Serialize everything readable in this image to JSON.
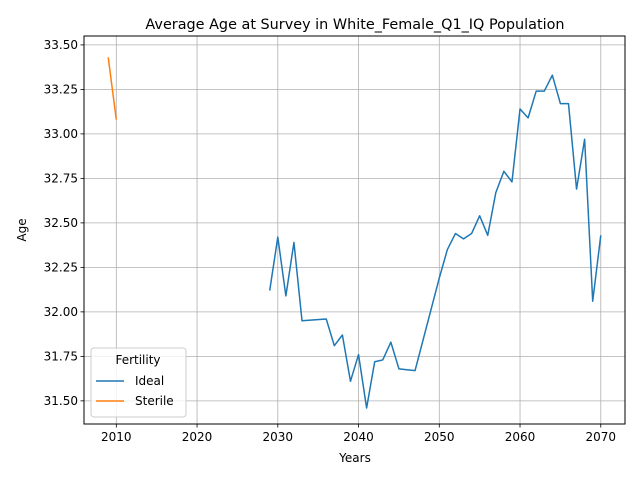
{
  "chart_data": {
    "type": "line",
    "title": "Average Age at Survey in White_Female_Q1_IQ Population",
    "xlabel": "Years",
    "ylabel": "Age",
    "xlim": [
      2006,
      2073
    ],
    "ylim": [
      31.37,
      33.55
    ],
    "xticks": [
      2010,
      2020,
      2030,
      2040,
      2050,
      2060,
      2070
    ],
    "yticks": [
      31.5,
      31.75,
      32.0,
      32.25,
      32.5,
      32.75,
      33.0,
      33.25,
      33.5
    ],
    "grid": true,
    "legend": {
      "title": "Fertility",
      "placement": "lower-left"
    },
    "series": [
      {
        "name": "Ideal",
        "color": "#1f77b4",
        "x": [
          2029,
          2030,
          2031,
          2032,
          2033,
          2036,
          2037,
          2038,
          2039,
          2040,
          2041,
          2042,
          2043,
          2044,
          2045,
          2047,
          2050,
          2051,
          2052,
          2053,
          2054,
          2055,
          2056,
          2057,
          2058,
          2059,
          2060,
          2061,
          2062,
          2063,
          2064,
          2065,
          2066,
          2067,
          2068,
          2069,
          2070
        ],
        "y": [
          32.12,
          32.42,
          32.09,
          32.39,
          31.95,
          31.96,
          31.81,
          31.87,
          31.61,
          31.76,
          31.46,
          31.72,
          31.73,
          31.83,
          31.68,
          31.67,
          32.19,
          32.35,
          32.44,
          32.41,
          32.44,
          32.54,
          32.43,
          32.67,
          32.79,
          32.73,
          33.14,
          33.09,
          33.24,
          33.24,
          33.33,
          33.17,
          33.17,
          32.69,
          32.97,
          32.06,
          32.43
        ]
      },
      {
        "name": "Sterile",
        "color": "#ff7f0e",
        "x": [
          2009,
          2010
        ],
        "y": [
          33.43,
          33.08
        ]
      }
    ]
  }
}
